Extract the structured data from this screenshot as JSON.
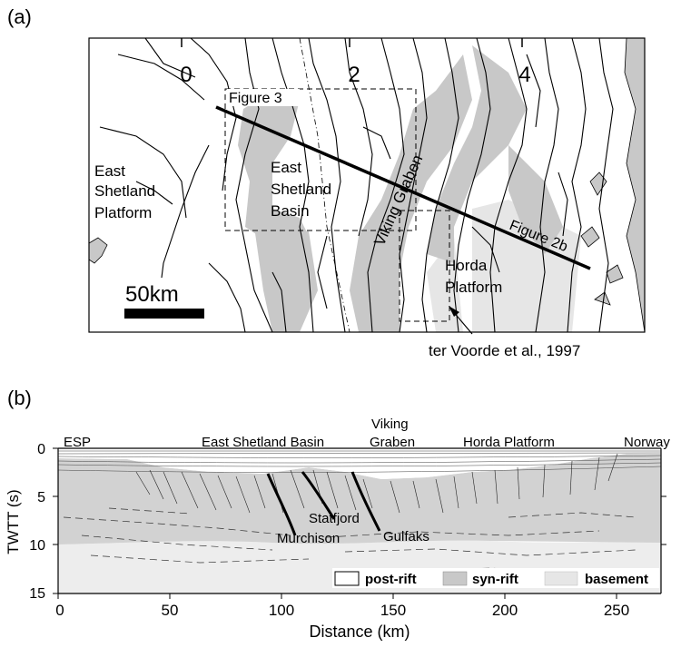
{
  "panel_a": {
    "label": "(a)",
    "ticks": [
      "0",
      "2",
      "4"
    ],
    "labels": {
      "figure3": "Figure 3",
      "east_shetland_platform": [
        "East",
        "Shetland",
        "Platform"
      ],
      "east_shetland_basin": [
        "East",
        "Shetland",
        "Basin"
      ],
      "viking_graben": "Viking Graben",
      "figure2b": "Figure 2b",
      "horda_platform": [
        "Horda",
        "Platform"
      ],
      "scale": "50km",
      "ter_voorde": "ter Voorde et al., 1997"
    },
    "colors": {
      "syn_rift": "#c8c8c8",
      "basement": "#e6e6e6",
      "line": "#000000"
    }
  },
  "panel_b": {
    "label": "(b)",
    "top_labels": {
      "esp": "ESP",
      "esb": "East Shetland Basin",
      "vg1": "Viking",
      "vg2": "Graben",
      "horda": "Horda Platform",
      "norway": "Norway"
    },
    "faults": [
      "Murchison",
      "Statfjord",
      "Gulfaks"
    ],
    "legend": [
      {
        "label": "post-rift",
        "color": "#ffffff"
      },
      {
        "label": "syn-rift",
        "color": "#c8c8c8"
      },
      {
        "label": "basement",
        "color": "#e6e6e6"
      }
    ],
    "axes": {
      "xlabel": "Distance (km)",
      "ylabel": "TWTT (s)",
      "xticks": [
        "0",
        "50",
        "100",
        "150",
        "200",
        "250"
      ],
      "yticks": [
        "0",
        "5",
        "10",
        "15"
      ]
    }
  }
}
